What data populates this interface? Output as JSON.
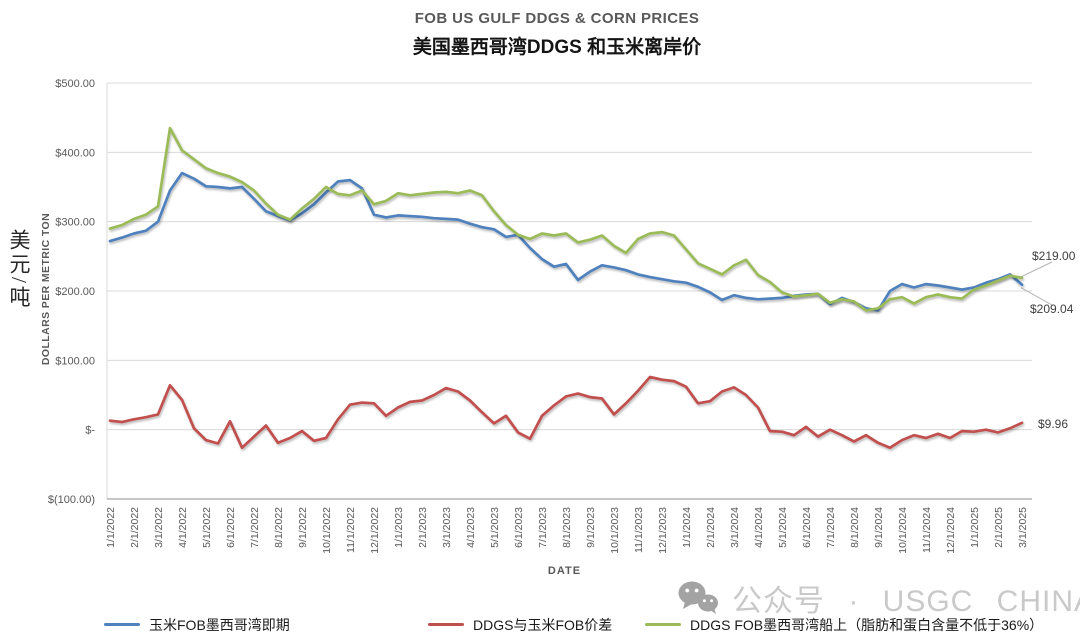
{
  "title": "FOB US GULF DDGS & CORN PRICES",
  "subtitle": "美国墨西哥湾DDGS 和玉米离岸价",
  "y_axis": {
    "title": "DOLLARS PER METRIC TON",
    "unit_label_cn": "美元/吨",
    "ticks": [
      "$500.00",
      "$400.00",
      "$300.00",
      "$200.00",
      "$100.00",
      "$-",
      "$(100.00)"
    ]
  },
  "x_axis": {
    "title": "DATE"
  },
  "annotations": {
    "ddgs_end": "$219.00",
    "corn_end": "$209.04",
    "spread_end": "$9.96"
  },
  "watermark": {
    "text": "公众号 · USGC CHINA",
    "icon": "wechat-icon"
  },
  "chart_data": {
    "type": "line",
    "title": "FOB US GULF DDGS & CORN PRICES 美国墨西哥湾DDGS 和玉米离岸价",
    "xlabel": "DATE",
    "ylabel": "DOLLARS PER METRIC TON",
    "ylim": [
      -100,
      500
    ],
    "y_tick_step": 100,
    "grid": true,
    "legend_position": "bottom",
    "sampling": "2 points per month tick (semi-monthly estimates read from chart)",
    "x_tick_labels": [
      "1/1/2022",
      "2/1/2022",
      "3/1/2022",
      "4/1/2022",
      "5/1/2022",
      "6/1/2022",
      "7/1/2022",
      "8/1/2022",
      "9/1/2022",
      "10/1/2022",
      "11/1/2022",
      "12/1/2022",
      "1/1/2023",
      "2/1/2023",
      "3/1/2023",
      "4/1/2023",
      "5/1/2023",
      "6/1/2023",
      "7/1/2023",
      "8/1/2023",
      "9/1/2023",
      "10/1/2023",
      "11/1/2023",
      "12/1/2023",
      "1/1/2024",
      "2/1/2024",
      "3/1/2024",
      "4/1/2024",
      "5/1/2024",
      "6/1/2024",
      "7/1/2024",
      "8/1/2024",
      "9/1/2024",
      "10/1/2024",
      "11/1/2024",
      "12/1/2024",
      "1/1/2025",
      "2/1/2025",
      "3/1/2025"
    ],
    "series": [
      {
        "name": "玉米FOB墨西哥湾即期",
        "color": "#4F81BD",
        "end_value": 209.04,
        "values": [
          272,
          277,
          283,
          287,
          300,
          345,
          370,
          362,
          351,
          350,
          348,
          350,
          333,
          315,
          308,
          302,
          312,
          325,
          342,
          358,
          360,
          348,
          310,
          306,
          309,
          308,
          307,
          305,
          304,
          303,
          297,
          292,
          289,
          278,
          281,
          262,
          246,
          235,
          239,
          216,
          228,
          237,
          234,
          230,
          224,
          220,
          217,
          214,
          212,
          206,
          198,
          187,
          194,
          190,
          188,
          189,
          190,
          193,
          195,
          196,
          181,
          190,
          184,
          175,
          172,
          200,
          210,
          205,
          210,
          208,
          205,
          202,
          205,
          212,
          217,
          224,
          209.04
        ]
      },
      {
        "name": "DDGS与玉米FOB价差",
        "color": "#C0504D",
        "end_value": 9.96,
        "values": [
          13,
          11,
          15,
          18,
          22,
          64,
          43,
          2,
          -15,
          -20,
          12,
          -26,
          -10,
          6,
          -19,
          -12,
          -2,
          -16,
          -12,
          15,
          36,
          39,
          38,
          20,
          32,
          40,
          42,
          50,
          60,
          55,
          42,
          25,
          9,
          20,
          -4,
          -13,
          20,
          35,
          48,
          52,
          47,
          45,
          22,
          38,
          56,
          76,
          72,
          70,
          62,
          38,
          41,
          55,
          61,
          50,
          32,
          -2,
          -3,
          -8,
          4,
          -10,
          0,
          -8,
          -17,
          -8,
          -19,
          -26,
          -15,
          -8,
          -12,
          -6,
          -12,
          -2,
          -3,
          0,
          -4,
          2,
          9.96
        ]
      },
      {
        "name": "DDGS FOB墨西哥湾船上（脂肪和蛋白含量不低于36%）",
        "color": "#9BBB59",
        "end_value": 219.0,
        "values": [
          290,
          295,
          304,
          310,
          322,
          435,
          403,
          390,
          377,
          370,
          365,
          357,
          345,
          326,
          310,
          303,
          319,
          333,
          350,
          340,
          338,
          345,
          325,
          330,
          341,
          338,
          340,
          342,
          343,
          341,
          345,
          338,
          315,
          295,
          281,
          275,
          283,
          280,
          283,
          270,
          274,
          280,
          265,
          255,
          275,
          283,
          285,
          280,
          260,
          240,
          232,
          224,
          237,
          245,
          223,
          213,
          198,
          192,
          194,
          196,
          183,
          188,
          185,
          172,
          175,
          188,
          191,
          182,
          191,
          195,
          191,
          189,
          202,
          208,
          215,
          222,
          219
        ]
      }
    ]
  },
  "colors": {
    "gridline": "#d9d9d9",
    "axis_line": "#a6a6a6",
    "tick_text": "#595959",
    "leader_line": "#b3b3b3",
    "watermark": "#c9c9c9",
    "wechat_icon_gray": "#a3a3a3"
  }
}
